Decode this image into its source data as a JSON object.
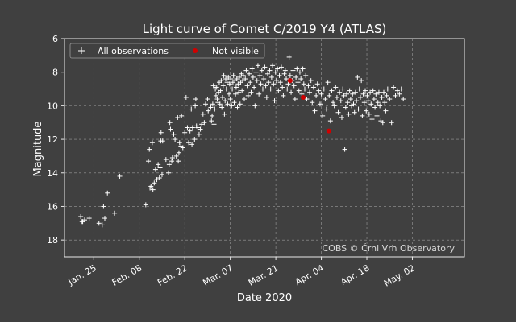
{
  "chart_data": {
    "type": "scatter",
    "title": "Light curve of Comet C/2019 Y4 (ATLAS)",
    "xlabel": "Date 2020",
    "ylabel": "Magnitude",
    "x_unit": "days since 2020-01-01",
    "xlim": [
      15,
      138
    ],
    "ylim": [
      19,
      6
    ],
    "y_inverted": true,
    "x_ticks": [
      {
        "value": 24,
        "label": "Jan. 25"
      },
      {
        "value": 38,
        "label": "Feb. 08"
      },
      {
        "value": 52,
        "label": "Feb. 22"
      },
      {
        "value": 66,
        "label": "Mar. 07"
      },
      {
        "value": 80,
        "label": "Mar. 21"
      },
      {
        "value": 94,
        "label": "Apr. 04"
      },
      {
        "value": 108,
        "label": "Apr. 18"
      },
      {
        "value": 122,
        "label": "May. 02"
      }
    ],
    "y_ticks": [
      6,
      8,
      10,
      12,
      14,
      16,
      18
    ],
    "grid": true,
    "legend_position": "top-left",
    "credit": "COBS © Črni Vrh Observatory",
    "series": [
      {
        "name": "All observations",
        "marker": "plus",
        "color": "#ffffff",
        "points": [
          [
            20.0,
            16.6
          ],
          [
            20.4,
            16.9
          ],
          [
            20.6,
            16.9
          ],
          [
            21.2,
            16.8
          ],
          [
            22.6,
            16.7
          ],
          [
            25.6,
            17.0
          ],
          [
            26.6,
            17.1
          ],
          [
            27.0,
            16.0
          ],
          [
            27.4,
            16.7
          ],
          [
            28.2,
            15.2
          ],
          [
            30.4,
            16.4
          ],
          [
            32.0,
            14.2
          ],
          [
            40.0,
            15.9
          ],
          [
            40.8,
            13.3
          ],
          [
            41.1,
            12.6
          ],
          [
            41.3,
            14.9
          ],
          [
            41.6,
            14.8
          ],
          [
            42.0,
            12.2
          ],
          [
            42.2,
            15.0
          ],
          [
            42.6,
            14.6
          ],
          [
            43.0,
            13.8
          ],
          [
            43.4,
            14.4
          ],
          [
            43.8,
            13.5
          ],
          [
            44.2,
            14.3
          ],
          [
            44.4,
            13.7
          ],
          [
            44.6,
            12.1
          ],
          [
            44.7,
            11.6
          ],
          [
            45.0,
            14.1
          ],
          [
            45.2,
            12.1
          ],
          [
            46.2,
            13.2
          ],
          [
            47.0,
            14.0
          ],
          [
            47.2,
            13.5
          ],
          [
            47.4,
            11.0
          ],
          [
            47.6,
            11.4
          ],
          [
            48.0,
            13.3
          ],
          [
            48.2,
            13.1
          ],
          [
            48.6,
            11.7
          ],
          [
            49.0,
            12.0
          ],
          [
            49.4,
            13.0
          ],
          [
            49.8,
            10.7
          ],
          [
            50.0,
            13.3
          ],
          [
            50.2,
            12.8
          ],
          [
            50.4,
            12.2
          ],
          [
            50.8,
            12.4
          ],
          [
            51.0,
            10.6
          ],
          [
            51.4,
            12.5
          ],
          [
            52.0,
            11.6
          ],
          [
            52.4,
            9.5
          ],
          [
            52.8,
            11.3
          ],
          [
            53.2,
            12.2
          ],
          [
            53.6,
            11.5
          ],
          [
            54.0,
            10.2
          ],
          [
            54.2,
            12.3
          ],
          [
            54.4,
            11.3
          ],
          [
            55.0,
            12.0
          ],
          [
            55.2,
            10.0
          ],
          [
            55.4,
            9.6
          ],
          [
            55.6,
            11.2
          ],
          [
            56.0,
            11.3
          ],
          [
            56.4,
            11.7
          ],
          [
            56.8,
            11.4
          ],
          [
            57.2,
            11.1
          ],
          [
            57.6,
            10.5
          ],
          [
            58.0,
            11.0
          ],
          [
            58.4,
            9.9
          ],
          [
            59.0,
            9.6
          ],
          [
            59.2,
            10.3
          ],
          [
            60.0,
            10.1
          ],
          [
            60.2,
            10.9
          ],
          [
            60.4,
            10.6
          ],
          [
            60.6,
            9.9
          ],
          [
            60.8,
            8.8
          ],
          [
            61.0,
            11.1
          ],
          [
            61.2,
            10.2
          ],
          [
            61.4,
            9.0
          ],
          [
            61.6,
            9.4
          ],
          [
            61.8,
            8.9
          ],
          [
            62.0,
            9.6
          ],
          [
            62.2,
            9.8
          ],
          [
            62.4,
            9.2
          ],
          [
            62.6,
            8.6
          ],
          [
            62.8,
            9.9
          ],
          [
            63.0,
            9.1
          ],
          [
            63.2,
            8.5
          ],
          [
            63.4,
            10.1
          ],
          [
            63.6,
            9.5
          ],
          [
            63.8,
            8.8
          ],
          [
            64.0,
            8.2
          ],
          [
            64.2,
            10.5
          ],
          [
            64.4,
            9.7
          ],
          [
            64.6,
            8.4
          ],
          [
            64.8,
            9.0
          ],
          [
            65.0,
            8.6
          ],
          [
            65.2,
            9.9
          ],
          [
            65.4,
            8.3
          ],
          [
            65.6,
            9.3
          ],
          [
            65.8,
            8.7
          ],
          [
            66.0,
            9.6
          ],
          [
            66.2,
            8.4
          ],
          [
            66.4,
            10.0
          ],
          [
            66.6,
            9.0
          ],
          [
            66.8,
            8.6
          ],
          [
            67.0,
            8.2
          ],
          [
            67.2,
            9.8
          ],
          [
            67.4,
            8.5
          ],
          [
            67.6,
            9.3
          ],
          [
            67.8,
            8.9
          ],
          [
            68.0,
            8.4
          ],
          [
            68.2,
            10.1
          ],
          [
            68.4,
            8.7
          ],
          [
            68.6,
            9.2
          ],
          [
            68.8,
            8.3
          ],
          [
            69.0,
            9.9
          ],
          [
            69.2,
            8.6
          ],
          [
            69.4,
            8.1
          ],
          [
            69.6,
            9.1
          ],
          [
            69.8,
            8.5
          ],
          [
            70.0,
            8.2
          ],
          [
            70.3,
            9.6
          ],
          [
            70.6,
            8.4
          ],
          [
            70.9,
            7.9
          ],
          [
            71.2,
            8.8
          ],
          [
            71.5,
            9.4
          ],
          [
            71.8,
            8.1
          ],
          [
            72.1,
            8.6
          ],
          [
            72.4,
            9.2
          ],
          [
            72.7,
            7.8
          ],
          [
            73.0,
            8.3
          ],
          [
            73.3,
            8.9
          ],
          [
            73.6,
            10.0
          ],
          [
            73.9,
            8.0
          ],
          [
            74.2,
            8.5
          ],
          [
            74.5,
            7.6
          ],
          [
            74.8,
            9.3
          ],
          [
            75.1,
            8.2
          ],
          [
            75.4,
            8.7
          ],
          [
            75.7,
            7.9
          ],
          [
            76.0,
            9.0
          ],
          [
            76.3,
            8.4
          ],
          [
            76.6,
            7.7
          ],
          [
            76.9,
            8.8
          ],
          [
            77.2,
            9.5
          ],
          [
            77.5,
            8.1
          ],
          [
            77.8,
            8.6
          ],
          [
            78.1,
            7.9
          ],
          [
            78.4,
            9.0
          ],
          [
            78.7,
            8.3
          ],
          [
            79.0,
            7.6
          ],
          [
            79.3,
            8.7
          ],
          [
            79.6,
            9.7
          ],
          [
            79.9,
            8.0
          ],
          [
            80.2,
            8.5
          ],
          [
            80.5,
            7.8
          ],
          [
            80.8,
            9.1
          ],
          [
            81.1,
            8.2
          ],
          [
            81.4,
            8.6
          ],
          [
            81.7,
            7.7
          ],
          [
            82.0,
            8.9
          ],
          [
            82.3,
            9.4
          ],
          [
            82.6,
            8.1
          ],
          [
            82.9,
            7.9
          ],
          [
            83.2,
            8.4
          ],
          [
            83.5,
            9.0
          ],
          [
            83.8,
            8.7
          ],
          [
            84.1,
            7.1
          ],
          [
            84.4,
            8.2
          ],
          [
            84.7,
            9.2
          ],
          [
            85.0,
            8.5
          ],
          [
            85.3,
            7.9
          ],
          [
            85.6,
            8.8
          ],
          [
            85.9,
            9.6
          ],
          [
            86.2,
            8.3
          ],
          [
            86.5,
            7.8
          ],
          [
            86.8,
            8.6
          ],
          [
            87.1,
            9.1
          ],
          [
            87.4,
            8.0
          ],
          [
            87.7,
            8.4
          ],
          [
            88.0,
            9.3
          ],
          [
            88.3,
            7.8
          ],
          [
            88.6,
            8.7
          ],
          [
            88.9,
            9.0
          ],
          [
            89.2,
            8.2
          ],
          [
            89.5,
            9.6
          ],
          [
            90.0,
            8.8
          ],
          [
            90.4,
            9.2
          ],
          [
            90.8,
            8.5
          ],
          [
            91.2,
            9.8
          ],
          [
            91.6,
            8.9
          ],
          [
            92.0,
            10.3
          ],
          [
            92.4,
            9.4
          ],
          [
            92.8,
            8.7
          ],
          [
            93.2,
            9.1
          ],
          [
            93.6,
            9.9
          ],
          [
            94.0,
            9.3
          ],
          [
            94.4,
            10.6
          ],
          [
            94.8,
            9.0
          ],
          [
            95.2,
            9.6
          ],
          [
            95.6,
            10.2
          ],
          [
            96.0,
            8.6
          ],
          [
            96.4,
            9.4
          ],
          [
            96.8,
            10.9
          ],
          [
            97.2,
            9.1
          ],
          [
            97.6,
            9.8
          ],
          [
            98.0,
            10.0
          ],
          [
            98.4,
            8.9
          ],
          [
            98.8,
            9.5
          ],
          [
            99.2,
            10.4
          ],
          [
            99.6,
            9.2
          ],
          [
            100.0,
            9.7
          ],
          [
            100.3,
            10.7
          ],
          [
            100.6,
            9.0
          ],
          [
            100.9,
            9.4
          ],
          [
            101.2,
            12.6
          ],
          [
            101.5,
            10.1
          ],
          [
            101.8,
            9.3
          ],
          [
            102.1,
            9.8
          ],
          [
            102.4,
            10.5
          ],
          [
            102.7,
            9.1
          ],
          [
            103.0,
            9.6
          ],
          [
            103.3,
            10.0
          ],
          [
            103.6,
            9.3
          ],
          [
            103.9,
            9.9
          ],
          [
            104.2,
            10.4
          ],
          [
            104.5,
            9.2
          ],
          [
            104.8,
            9.7
          ],
          [
            105.1,
            8.3
          ],
          [
            105.4,
            10.2
          ],
          [
            105.7,
            9.0
          ],
          [
            106.0,
            9.5
          ],
          [
            106.3,
            8.5
          ],
          [
            106.6,
            10.6
          ],
          [
            106.9,
            9.3
          ],
          [
            107.2,
            9.8
          ],
          [
            107.5,
            9.1
          ],
          [
            107.8,
            10.3
          ],
          [
            108.1,
            9.4
          ],
          [
            108.4,
            9.7
          ],
          [
            108.7,
            10.5
          ],
          [
            109.0,
            9.2
          ],
          [
            109.3,
            9.9
          ],
          [
            109.6,
            10.8
          ],
          [
            109.9,
            9.1
          ],
          [
            110.2,
            9.6
          ],
          [
            110.5,
            10.1
          ],
          [
            110.8,
            9.3
          ],
          [
            111.1,
            10.6
          ],
          [
            111.4,
            9.8
          ],
          [
            111.7,
            9.2
          ],
          [
            112.0,
            10.0
          ],
          [
            112.3,
            10.9
          ],
          [
            112.6,
            9.5
          ],
          [
            112.9,
            11.0
          ],
          [
            113.2,
            9.2
          ],
          [
            113.5,
            9.8
          ],
          [
            113.8,
            10.3
          ],
          [
            114.1,
            9.4
          ],
          [
            114.4,
            9.0
          ],
          [
            115.0,
            9.6
          ],
          [
            115.6,
            11.0
          ],
          [
            116.2,
            8.9
          ],
          [
            116.8,
            9.4
          ],
          [
            117.4,
            9.1
          ],
          [
            118.0,
            9.3
          ],
          [
            118.6,
            9.0
          ],
          [
            119.2,
            9.6
          ]
        ]
      },
      {
        "name": "Not visible",
        "marker": "dot",
        "color": "#d00000",
        "points": [
          [
            84.4,
            8.5
          ],
          [
            88.4,
            9.5
          ],
          [
            96.3,
            11.5
          ]
        ]
      }
    ]
  }
}
